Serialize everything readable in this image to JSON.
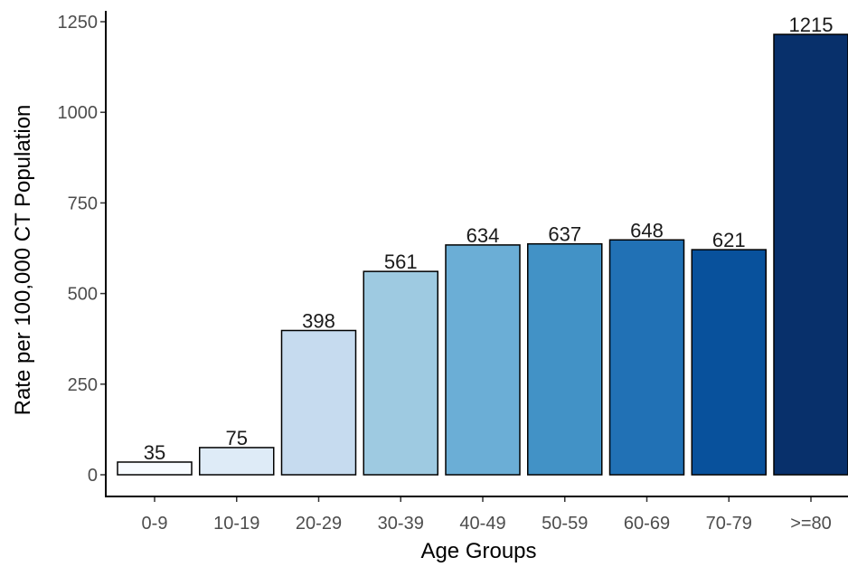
{
  "chart_data": {
    "type": "bar",
    "title": "",
    "xlabel": "Age Groups",
    "ylabel": "Rate per 100,000 CT Population",
    "categories": [
      "0-9",
      "10-19",
      "20-29",
      "30-39",
      "40-49",
      "50-59",
      "60-69",
      "70-79",
      ">=80"
    ],
    "values": [
      35,
      75,
      398,
      561,
      634,
      637,
      648,
      621,
      1215
    ],
    "data_labels": [
      "35",
      "75",
      "398",
      "561",
      "634",
      "637",
      "648",
      "621",
      "1215"
    ],
    "yticks": [
      0,
      250,
      500,
      750,
      1000,
      1250
    ],
    "ytick_labels": [
      "0",
      "250",
      "500",
      "750",
      "1000",
      "1250"
    ],
    "ylim": [
      0,
      1250
    ],
    "grid": false,
    "legend": false,
    "bar_colors": [
      "#f7fbff",
      "#deebf7",
      "#c6dbef",
      "#9ecae1",
      "#6baed6",
      "#4292c6",
      "#2171b5",
      "#08519c",
      "#08306b"
    ]
  }
}
